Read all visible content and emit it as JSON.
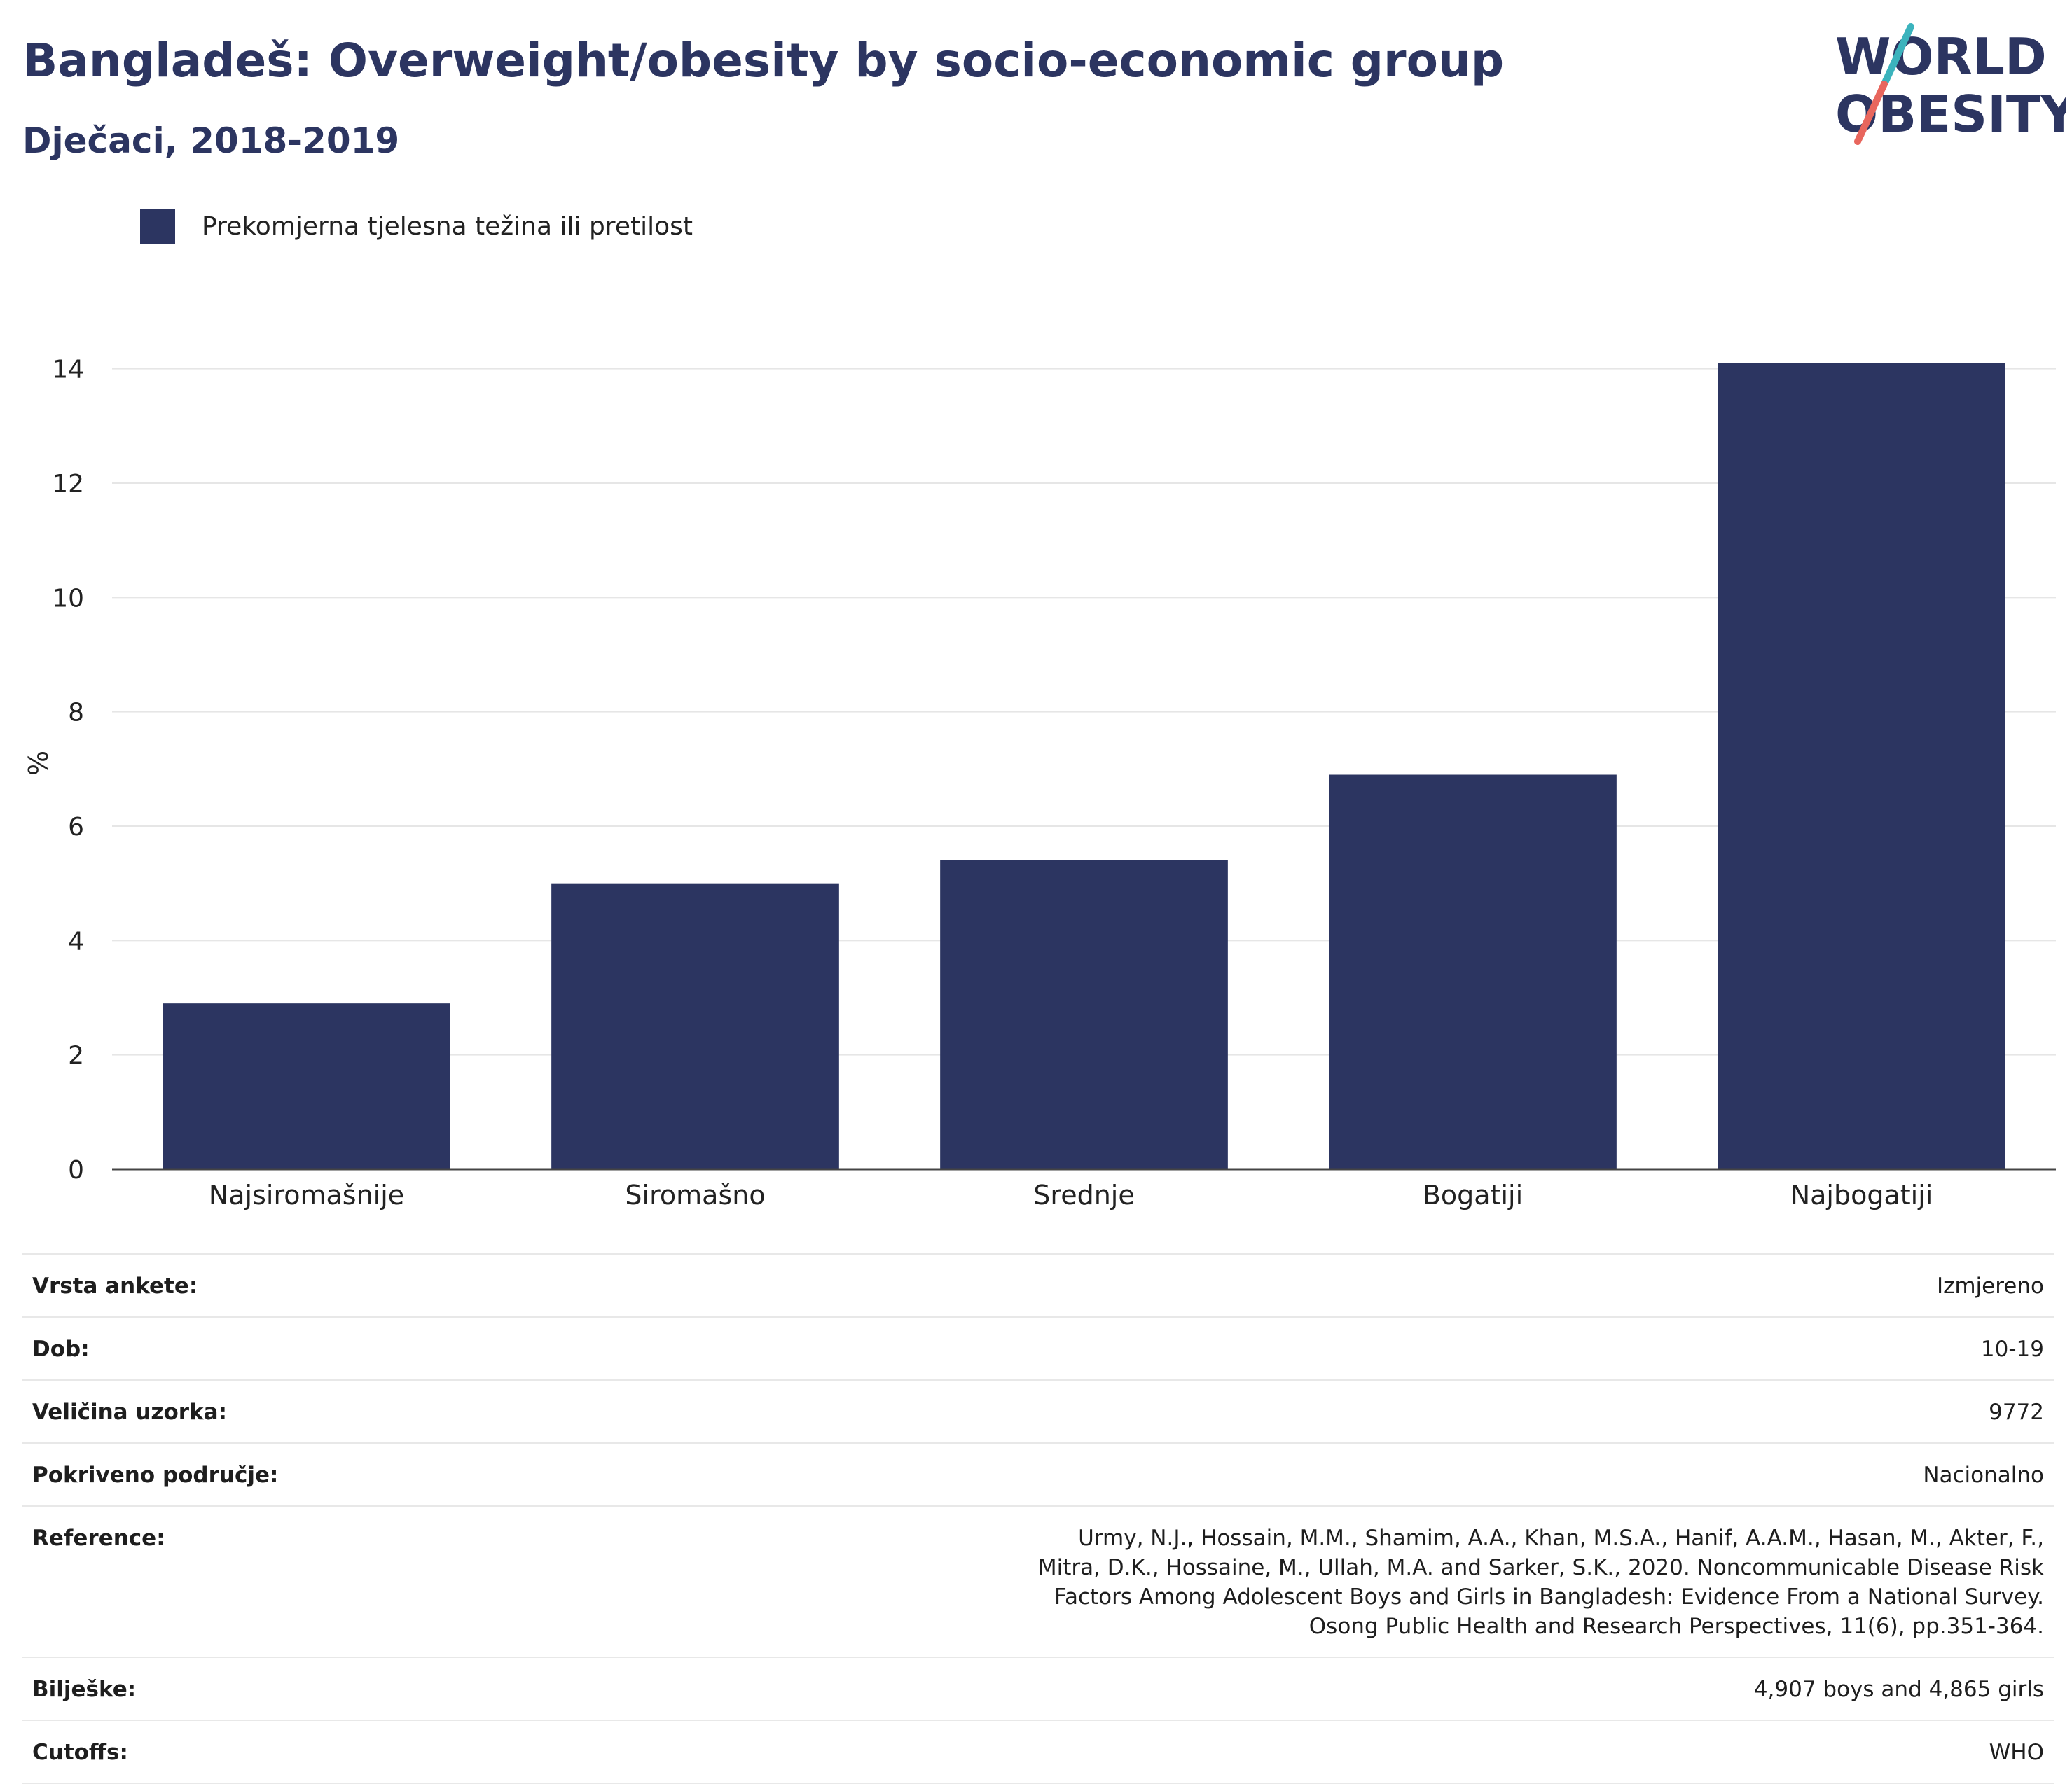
{
  "header": {
    "title": "Bangladeš: Overweight/obesity by socio-economic group",
    "subtitle": "Dječaci, 2018-2019"
  },
  "logo": {
    "line1": "WORLD",
    "line2": "OBESITY",
    "colors": {
      "text": "#2c3561",
      "slash_teal": "#3bb3bd",
      "slash_red": "#e8665d"
    }
  },
  "legend": {
    "items": [
      {
        "label": "Prekomjerna tjelesna težina ili pretilost",
        "color": "#2c3561"
      }
    ]
  },
  "chart_data": {
    "type": "bar",
    "title": "Bangladeš: Overweight/obesity by socio-economic group",
    "subtitle": "Dječaci, 2018-2019",
    "xlabel": "",
    "ylabel": "%",
    "categories": [
      "Najsiromašnije",
      "Siromašno",
      "Srednje",
      "Bogatiji",
      "Najbogatiji"
    ],
    "series": [
      {
        "name": "Prekomjerna tjelesna težina ili pretilost",
        "values": [
          2.9,
          5.0,
          5.4,
          6.9,
          14.1
        ],
        "color": "#2c3561"
      }
    ],
    "ylim": [
      0,
      15
    ],
    "yticks": [
      0,
      2,
      4,
      6,
      8,
      10,
      12,
      14
    ],
    "grid": true,
    "legend_position": "top-left"
  },
  "table": {
    "rows": [
      {
        "label": "Vrsta ankete:",
        "value": "Izmjereno"
      },
      {
        "label": "Dob:",
        "value": "10-19"
      },
      {
        "label": "Veličina uzorka:",
        "value": "9772"
      },
      {
        "label": "Pokriveno područje:",
        "value": "Nacionalno"
      },
      {
        "label": "Reference:",
        "value": "Urmy, N.J., Hossain, M.M., Shamim, A.A., Khan, M.S.A., Hanif, A.A.M., Hasan, M., Akter, F., Mitra, D.K., Hossaine, M., Ullah, M.A. and Sarker, S.K., 2020. Noncommunicable Disease Risk Factors Among Adolescent Boys and Girls in Bangladesh: Evidence From a National Survey. Osong Public Health and Research Perspectives, 11(6), pp.351-364."
      },
      {
        "label": "Bilješke:",
        "value": "4,907 boys and 4,865 girls"
      },
      {
        "label": "Cutoffs:",
        "value": "WHO"
      }
    ]
  }
}
